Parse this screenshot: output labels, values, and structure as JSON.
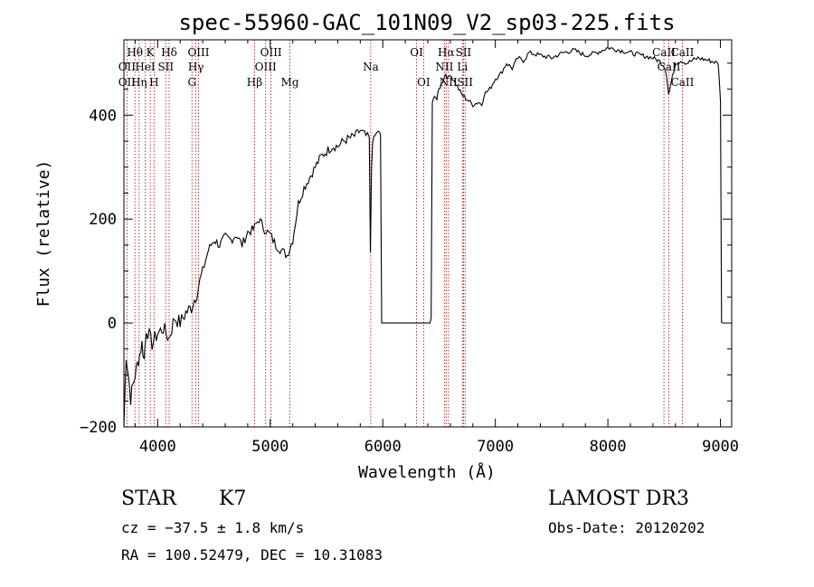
{
  "chart_data": {
    "type": "line",
    "title": "spec-55960-GAC_101N09_V2_sp03-225.fits",
    "xlabel": "Wavelength (Å)",
    "ylabel": "Flux (relative)",
    "xlim": [
      3700,
      9100
    ],
    "ylim": [
      -200,
      545
    ],
    "xticks": [
      4000,
      5000,
      6000,
      7000,
      8000,
      9000
    ],
    "xtick_labels": [
      "4000",
      "5000",
      "6000",
      "7000",
      "8000",
      "9000"
    ],
    "yticks": [
      -200,
      0,
      200,
      400
    ],
    "ytick_labels": [
      "−200",
      "0",
      "200",
      "400"
    ],
    "series": [
      {
        "name": "spectrum",
        "x": [
          3700,
          3720,
          3740,
          3760,
          3780,
          3800,
          3820,
          3840,
          3860,
          3880,
          3900,
          3950,
          4000,
          4050,
          4100,
          4150,
          4200,
          4250,
          4300,
          4350,
          4400,
          4450,
          4500,
          4550,
          4600,
          4650,
          4700,
          4750,
          4800,
          4850,
          4900,
          4950,
          5000,
          5050,
          5100,
          5150,
          5200,
          5250,
          5300,
          5350,
          5400,
          5450,
          5500,
          5550,
          5600,
          5650,
          5700,
          5750,
          5800,
          5850,
          5880,
          5890,
          5900,
          5910,
          5930,
          5960,
          5980,
          5990,
          6420,
          6430,
          6440,
          6460,
          6480,
          6500,
          6520,
          6540,
          6560,
          6580,
          6600,
          6620,
          6650,
          6700,
          6750,
          6800,
          6850,
          6880,
          6900,
          6950,
          7000,
          7050,
          7100,
          7150,
          7200,
          7250,
          7300,
          7400,
          7500,
          7600,
          7700,
          7800,
          7900,
          8000,
          8100,
          8200,
          8300,
          8400,
          8450,
          8500,
          8520,
          8540,
          8560,
          8600,
          8650,
          8700,
          8800,
          8900,
          8980,
          9000,
          9010,
          9020
        ],
        "values": [
          -200,
          -60,
          -100,
          -145,
          -120,
          -100,
          -80,
          -60,
          -40,
          -70,
          -10,
          -40,
          -20,
          -10,
          -30,
          10,
          0,
          20,
          30,
          60,
          100,
          140,
          160,
          150,
          165,
          160,
          170,
          150,
          175,
          180,
          200,
          180,
          170,
          150,
          140,
          130,
          160,
          230,
          260,
          280,
          300,
          320,
          330,
          340,
          340,
          350,
          355,
          360,
          370,
          360,
          355,
          130,
          300,
          350,
          360,
          370,
          360,
          0,
          0,
          10,
          420,
          440,
          430,
          450,
          460,
          470,
          480,
          470,
          480,
          470,
          460,
          440,
          430,
          420,
          425,
          420,
          440,
          450,
          470,
          480,
          500,
          490,
          510,
          505,
          520,
          515,
          510,
          520,
          525,
          515,
          520,
          530,
          525,
          520,
          515,
          510,
          505,
          495,
          480,
          440,
          460,
          500,
          505,
          500,
          510,
          505,
          500,
          430,
          2,
          0
        ]
      }
    ],
    "line_markers": [
      {
        "name": "Hθ",
        "wavelength": 3798,
        "row": 1
      },
      {
        "name": "OII",
        "wavelength": 3727,
        "row": 2
      },
      {
        "name": "OII",
        "wavelength": 3727,
        "row": 3
      },
      {
        "name": "Hη",
        "wavelength": 3835,
        "row": 3
      },
      {
        "name": "HeI",
        "wavelength": 3889,
        "row": 2
      },
      {
        "name": "K",
        "wavelength": 3934,
        "row": 1
      },
      {
        "name": "H",
        "wavelength": 3968,
        "row": 3
      },
      {
        "name": "SII",
        "wavelength": 4072,
        "row": 2
      },
      {
        "name": "Hδ",
        "wavelength": 4102,
        "row": 1
      },
      {
        "name": "OIII",
        "wavelength": 4363,
        "row": 1
      },
      {
        "name": "Hγ",
        "wavelength": 4340,
        "row": 2
      },
      {
        "name": "G",
        "wavelength": 4305,
        "row": 3
      },
      {
        "name": "Hβ",
        "wavelength": 4861,
        "row": 3
      },
      {
        "name": "OIII",
        "wavelength": 5007,
        "row": 1
      },
      {
        "name": "OIII",
        "wavelength": 4959,
        "row": 2
      },
      {
        "name": "Mg",
        "wavelength": 5175,
        "row": 3
      },
      {
        "name": "Na",
        "wavelength": 5893,
        "row": 2
      },
      {
        "name": "OI",
        "wavelength": 6300,
        "row": 1
      },
      {
        "name": "OI",
        "wavelength": 6363,
        "row": 3
      },
      {
        "name": "Hα",
        "wavelength": 6563,
        "row": 1
      },
      {
        "name": "NII",
        "wavelength": 6548,
        "row": 2
      },
      {
        "name": "NII",
        "wavelength": 6583,
        "row": 3
      },
      {
        "name": "SII",
        "wavelength": 6717,
        "row": 1
      },
      {
        "name": "Li",
        "wavelength": 6708,
        "row": 2
      },
      {
        "name": "SII",
        "wavelength": 6731,
        "row": 3
      },
      {
        "name": "CaII",
        "wavelength": 8498,
        "row": 1
      },
      {
        "name": "CaII",
        "wavelength": 8542,
        "row": 2
      },
      {
        "name": "CaII",
        "wavelength": 8662,
        "row": 3
      },
      {
        "name": "CaII",
        "wavelength": 8662,
        "row": 1
      }
    ]
  },
  "info": {
    "object_type": "STAR",
    "subclass": "K7",
    "survey": "LAMOST DR3",
    "redshift": "cz = −37.5 ± 1.8 km/s",
    "obs_date": "Obs-Date: 20120202",
    "coords": "RA = 100.52479, DEC =  10.31083"
  },
  "colors": {
    "spectrum": "#000000",
    "line_marker": "#b22222",
    "axis": "#000000"
  }
}
